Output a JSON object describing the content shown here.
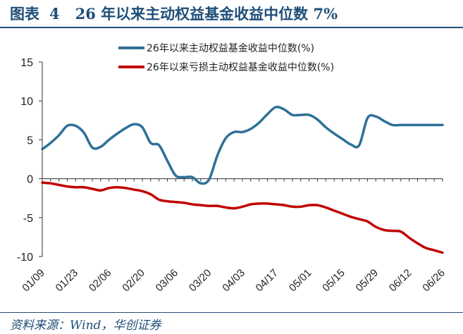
{
  "header": {
    "figure_label": "图表",
    "figure_number": "4",
    "title_text": "26 年以来主动权益基金收益中位数 7%"
  },
  "footer": {
    "source": "资料来源：Wind，华创证券"
  },
  "colors": {
    "title": "#1f4e79",
    "series_blue": "#2e7097",
    "series_red": "#c00000",
    "axis": "#333333"
  },
  "chart_data": {
    "type": "line",
    "title": "",
    "xlabel": "",
    "ylabel": "",
    "ylim": [
      -10,
      15
    ],
    "yticks": [
      15,
      10,
      5,
      0,
      -5,
      -10
    ],
    "grid": false,
    "legend_position": "top",
    "x_dates": [
      "01/09",
      "01/12",
      "01/16",
      "01/19",
      "01/23",
      "01/26",
      "01/30",
      "02/02",
      "02/06",
      "02/09",
      "02/13",
      "02/16",
      "02/20",
      "02/23",
      "02/27",
      "03/02",
      "03/06",
      "03/09",
      "03/13",
      "03/16",
      "03/20",
      "03/23",
      "03/27",
      "03/30",
      "04/03",
      "04/06",
      "04/10",
      "04/13",
      "04/17",
      "04/20",
      "04/24",
      "04/27",
      "05/01",
      "05/04",
      "05/08",
      "05/11",
      "05/15",
      "05/18",
      "05/22",
      "05/25",
      "05/29",
      "06/01",
      "06/05",
      "06/08",
      "06/12",
      "06/15",
      "06/19",
      "06/22",
      "06/26"
    ],
    "xtick_labels": [
      "01/09",
      "01/23",
      "02/06",
      "02/20",
      "03/06",
      "03/20",
      "04/03",
      "04/17",
      "05/01",
      "05/15",
      "05/29",
      "06/12",
      "06/26"
    ],
    "series": [
      {
        "name": "26年以来主动权益基金收益中位数(%)",
        "color": "#2e7097",
        "values": [
          3.8,
          4.6,
          5.6,
          6.8,
          6.8,
          5.9,
          4.0,
          4.1,
          5.0,
          5.8,
          6.5,
          7.0,
          6.6,
          4.6,
          4.3,
          2.3,
          0.4,
          0.2,
          0.2,
          -0.6,
          -0.1,
          3.0,
          5.2,
          6.0,
          6.0,
          6.4,
          7.2,
          8.3,
          9.2,
          8.9,
          8.2,
          8.2,
          8.2,
          7.6,
          6.6,
          5.8,
          5.1,
          4.4,
          4.3,
          7.8,
          8.0,
          7.4,
          6.9,
          6.9,
          6.9,
          6.9,
          6.9,
          6.9,
          6.9
        ]
      },
      {
        "name": "26年以来亏损主动权益基金收益中位数(%)",
        "color": "#c00000",
        "values": [
          -0.5,
          -0.6,
          -0.8,
          -1.0,
          -1.1,
          -1.1,
          -1.3,
          -1.5,
          -1.2,
          -1.1,
          -1.2,
          -1.4,
          -1.6,
          -2.0,
          -2.7,
          -2.9,
          -3.0,
          -3.1,
          -3.3,
          -3.4,
          -3.5,
          -3.5,
          -3.7,
          -3.8,
          -3.6,
          -3.3,
          -3.2,
          -3.2,
          -3.3,
          -3.4,
          -3.6,
          -3.6,
          -3.4,
          -3.4,
          -3.7,
          -4.1,
          -4.5,
          -4.9,
          -5.2,
          -5.5,
          -6.2,
          -6.6,
          -6.7,
          -6.8,
          -7.6,
          -8.3,
          -8.9,
          -9.2,
          -9.5
        ]
      }
    ]
  }
}
